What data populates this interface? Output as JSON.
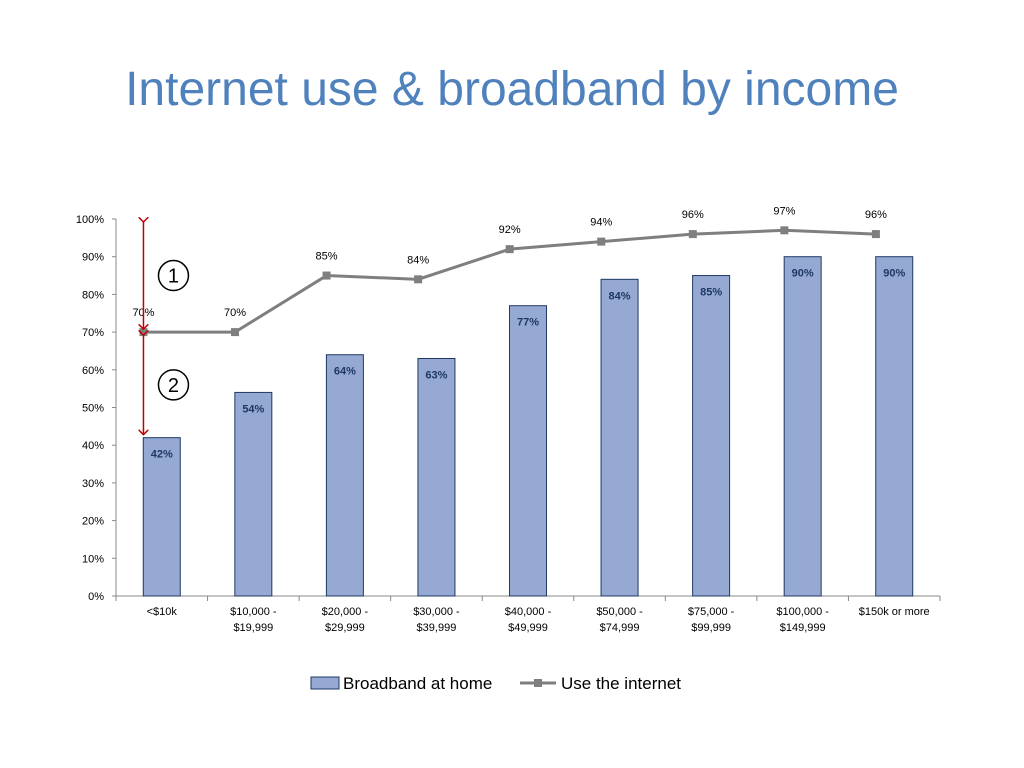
{
  "page": {
    "title": "Internet use & broadband by income"
  },
  "chart_data": {
    "type": "bar",
    "categories": [
      "<$10k",
      "$10,000 - $19,999",
      "$20,000 - $29,999",
      "$30,000 - $39,999",
      "$40,000 - $49,999",
      "$50,000 - $74,999",
      "$75,000 - $99,999",
      "$100,000 - $149,999",
      "$150k or more"
    ],
    "category_lines": [
      [
        "<$10k"
      ],
      [
        "$10,000 -",
        "$19,999"
      ],
      [
        "$20,000 -",
        "$29,999"
      ],
      [
        "$30,000 -",
        "$39,999"
      ],
      [
        "$40,000 -",
        "$49,999"
      ],
      [
        "$50,000 -",
        "$74,999"
      ],
      [
        "$75,000 -",
        "$99,999"
      ],
      [
        "$100,000 -",
        "$149,999"
      ],
      [
        "$150k or more"
      ]
    ],
    "series": [
      {
        "name": "Broadband at home",
        "type": "bar",
        "values": [
          42,
          54,
          64,
          63,
          77,
          84,
          85,
          90,
          90
        ],
        "labels": [
          "42%",
          "54%",
          "64%",
          "63%",
          "77%",
          "84%",
          "85%",
          "90%",
          "90%"
        ],
        "color": "#95a9d3"
      },
      {
        "name": "Use the internet",
        "type": "line",
        "values": [
          70,
          70,
          85,
          84,
          92,
          94,
          96,
          97,
          96
        ],
        "labels": [
          "70%",
          "70%",
          "85%",
          "84%",
          "92%",
          "94%",
          "96%",
          "97%",
          "96%"
        ],
        "color": "#7f7f7f"
      }
    ],
    "ylim": [
      0,
      100
    ],
    "y_ticks": [
      "0%",
      "10%",
      "20%",
      "30%",
      "40%",
      "50%",
      "60%",
      "70%",
      "80%",
      "90%",
      "100%"
    ],
    "legend_position": "bottom",
    "grid": false,
    "annotations": [
      {
        "label": "1",
        "from": 100,
        "to": 70,
        "color": "#c00000"
      },
      {
        "label": "2",
        "from": 70,
        "to": 42,
        "color": "#c00000"
      }
    ],
    "xlabel": "",
    "ylabel": ""
  }
}
